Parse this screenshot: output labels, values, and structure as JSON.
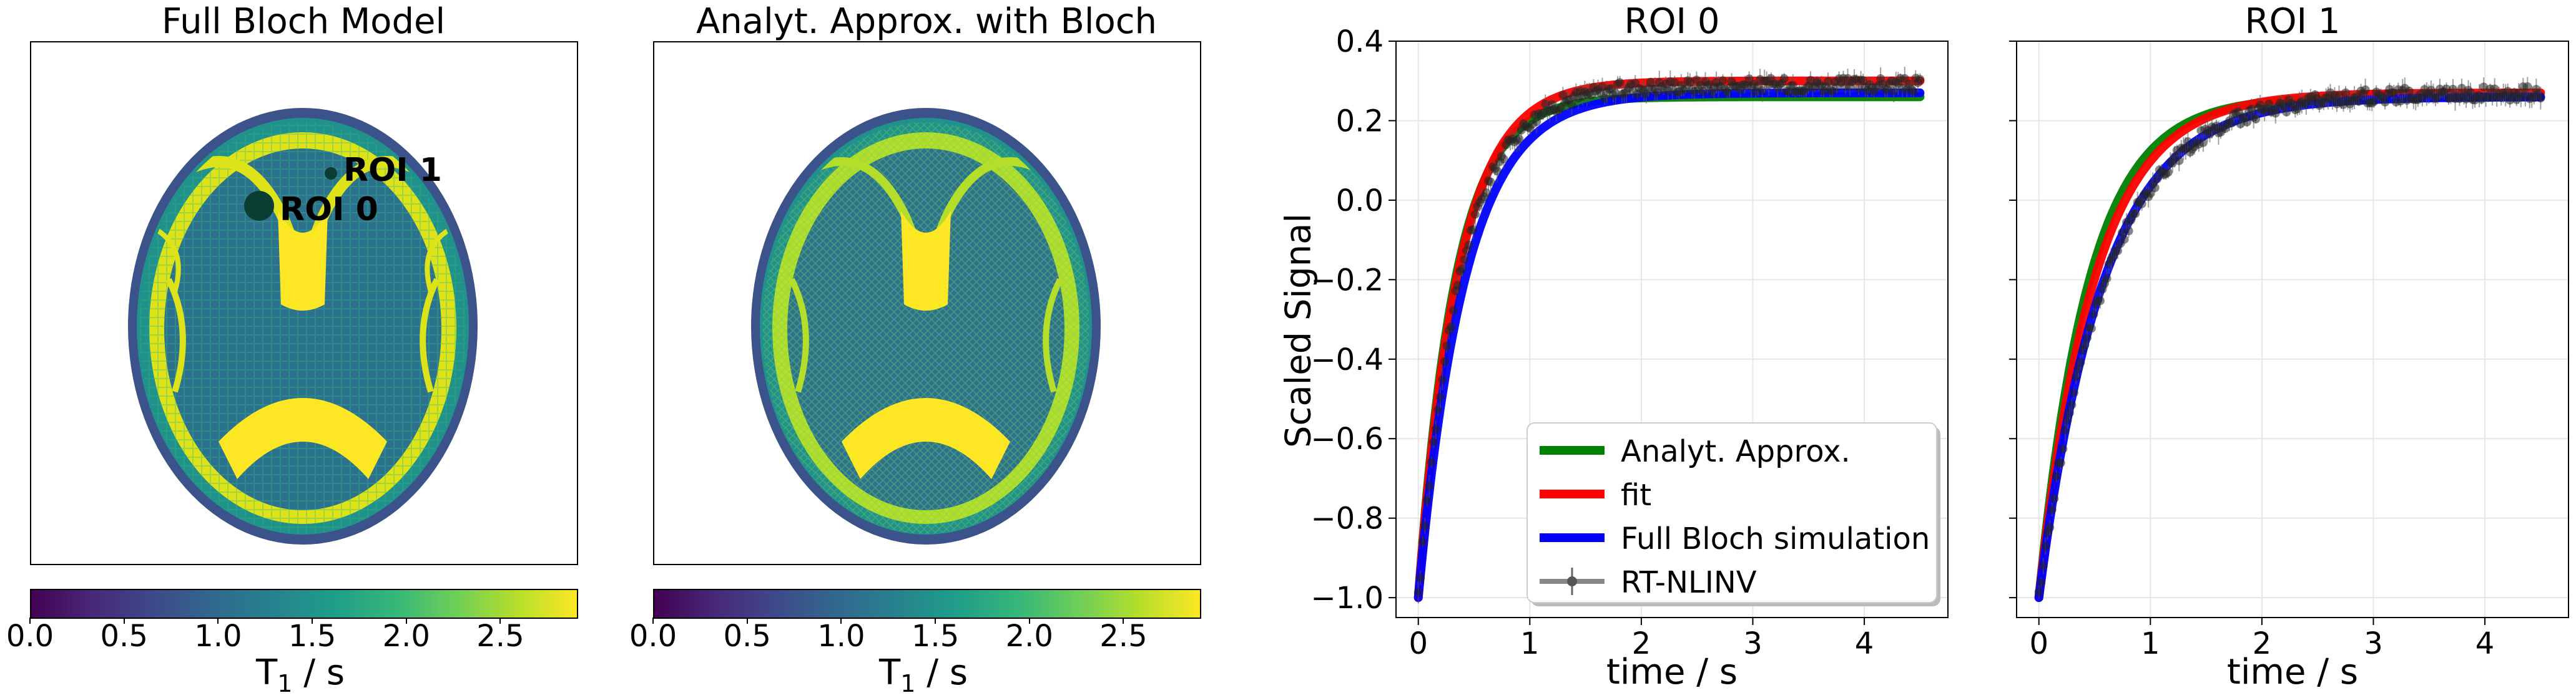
{
  "panels": {
    "map1_title": "Full Bloch Model",
    "map2_title": "Analyt. Approx. with Bloch",
    "roi0_title": "ROI 0",
    "roi1_title": "ROI 1"
  },
  "maps": {
    "roi_labels": [
      "ROI 1",
      "ROI 0"
    ],
    "colorbar": {
      "colormap": "viridis",
      "range": [
        0,
        2.9
      ],
      "ticks": [
        "0.0",
        "0.5",
        "1.0",
        "1.5",
        "2.0",
        "2.5"
      ],
      "label": "T",
      "label_sub": "1",
      "label_unit": " / s"
    }
  },
  "chart_data": [
    {
      "type": "line",
      "title": "ROI 0",
      "xlabel": "time / s",
      "ylabel": "Scaled Signal",
      "xlim": [
        -0.2,
        4.75
      ],
      "ylim": [
        -1.05,
        0.4
      ],
      "xticks": [
        "0",
        "1",
        "2",
        "3",
        "4"
      ],
      "yticks": [
        "−1.0",
        "−0.8",
        "−0.6",
        "−0.4",
        "−0.2",
        "0.0",
        "0.2",
        "0.4"
      ],
      "grid": true,
      "legend_position": "lower-right",
      "series": [
        {
          "name": "Analyt. Approx.",
          "color": "#008000",
          "A": 1.26,
          "T": 0.33,
          "plateau": 0.26
        },
        {
          "name": "fit",
          "color": "#ff0000",
          "A": 1.3,
          "T": 0.36,
          "plateau": 0.3
        },
        {
          "name": "Full Bloch simulation",
          "color": "#0000ff",
          "A": 1.27,
          "T": 0.42,
          "plateau": 0.27
        },
        {
          "name": "RT-NLINV",
          "color": "#333333",
          "A": 1.29,
          "T": 0.38,
          "plateau": 0.29,
          "points": true
        }
      ]
    },
    {
      "type": "line",
      "title": "ROI 1",
      "xlabel": "time / s",
      "ylabel": "",
      "xlim": [
        -0.2,
        4.75
      ],
      "ylim": [
        -1.05,
        0.4
      ],
      "xticks": [
        "0",
        "1",
        "2",
        "3",
        "4"
      ],
      "yticks": [],
      "grid": true,
      "series": [
        {
          "name": "Analyt. Approx.",
          "color": "#008000",
          "A": 1.26,
          "T": 0.45,
          "plateau": 0.26
        },
        {
          "name": "fit",
          "color": "#ff0000",
          "A": 1.27,
          "T": 0.5,
          "plateau": 0.27
        },
        {
          "name": "Full Bloch simulation",
          "color": "#0000ff",
          "A": 1.26,
          "T": 0.58,
          "plateau": 0.26
        },
        {
          "name": "RT-NLINV",
          "color": "#333333",
          "A": 1.27,
          "T": 0.6,
          "plateau": 0.27,
          "points": true
        }
      ]
    }
  ]
}
